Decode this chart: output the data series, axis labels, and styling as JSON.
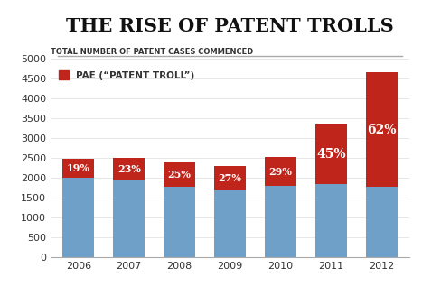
{
  "title": "THE RISE OF PATENT TROLLS",
  "ylabel": "TOTAL NUMBER OF PATENT CASES COMMENCED",
  "years": [
    "2006",
    "2007",
    "2008",
    "2009",
    "2010",
    "2011",
    "2012"
  ],
  "totals": [
    2480,
    2510,
    2380,
    2300,
    2520,
    3350,
    4650
  ],
  "pae_pct": [
    0.19,
    0.23,
    0.25,
    0.27,
    0.29,
    0.45,
    0.62
  ],
  "pae_labels": [
    "19%",
    "23%",
    "25%",
    "27%",
    "29%",
    "45%",
    "62%"
  ],
  "color_blue": "#6fa0c8",
  "color_red": "#c0251b",
  "background_color": "#ffffff",
  "ylim": [
    0,
    5000
  ],
  "yticks": [
    0,
    500,
    1000,
    1500,
    2000,
    2500,
    3000,
    3500,
    4000,
    4500,
    5000
  ],
  "legend_label": "PAE (“PATENT TROLL”)",
  "title_fontsize": 15,
  "subtitle_fontsize": 6,
  "tick_fontsize": 8,
  "bar_width": 0.62
}
